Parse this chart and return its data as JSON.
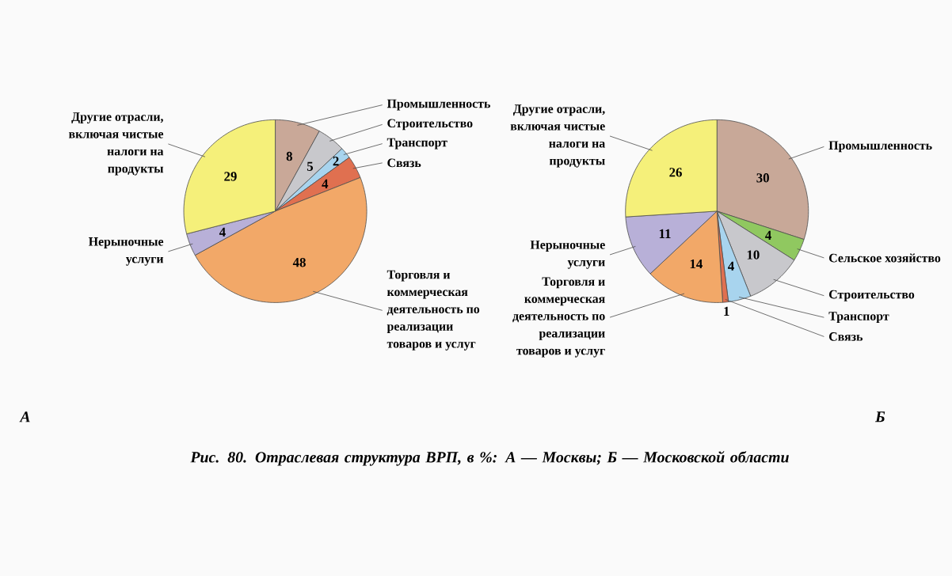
{
  "chart_data": [
    {
      "type": "pie",
      "title": "А",
      "categories": [
        "Промышленность",
        "Строительство",
        "Транспорт",
        "Связь",
        "Торговля и коммерческая деятельность по реализации товаров и услуг",
        "Нерыночные услуги",
        "Другие отрасли, включая чистые налоги на продукты"
      ],
      "values": [
        8,
        5,
        2,
        4,
        48,
        4,
        29
      ],
      "colors": [
        "#c9a898",
        "#c8c8cc",
        "#a8d4ee",
        "#e07050",
        "#f2a868",
        "#b8b0d8",
        "#f5f07a"
      ],
      "data_labels": true,
      "annotations": [
        "Рис. 80. Отраслевая структура ВРП, в %: А — Москвы; Б — Московской области"
      ]
    },
    {
      "type": "pie",
      "title": "Б",
      "categories": [
        "Промышленность",
        "Сельское хозяйство",
        "Строительство",
        "Транспорт",
        "Связь",
        "Торговля и коммерческая деятельность по реализации товаров и услуг",
        "Нерыночные услуги",
        "Другие отрасли, включая чистые налоги на продукты"
      ],
      "values": [
        30,
        4,
        10,
        4,
        1,
        14,
        11,
        26
      ],
      "colors": [
        "#c8a898",
        "#90c860",
        "#c8c8cc",
        "#a8d4ee",
        "#e07050",
        "#f2a868",
        "#b8b0d8",
        "#f5f07a"
      ],
      "data_labels": true
    }
  ]
}
